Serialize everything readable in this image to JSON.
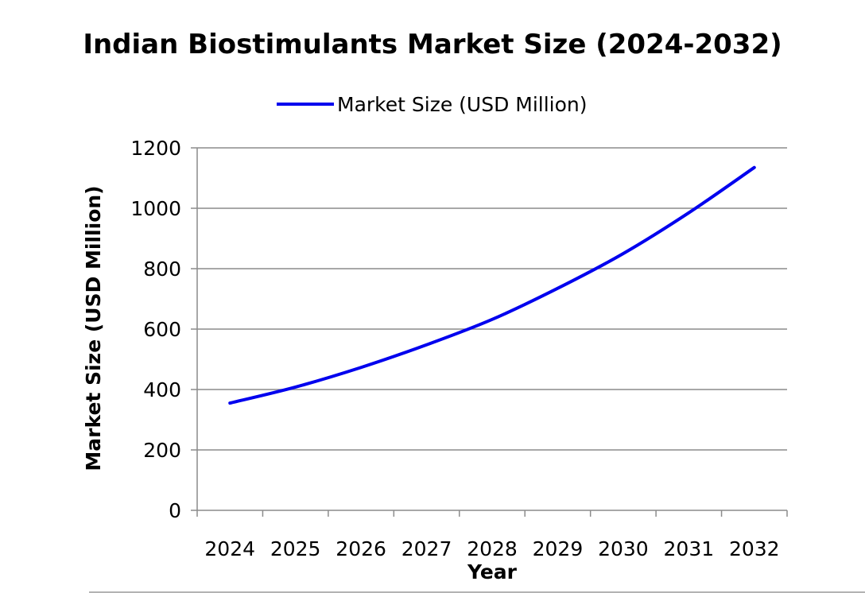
{
  "chart_data": {
    "type": "line",
    "title": "Indian Biostimulants Market Size (2024-2032)",
    "xlabel": "Year",
    "ylabel": "Market Size (USD Million)",
    "categories": [
      "2024",
      "2025",
      "2026",
      "2027",
      "2028",
      "2029",
      "2030",
      "2031",
      "2032"
    ],
    "series": [
      {
        "name": "Market Size (USD Million)",
        "values": [
          355,
          408,
          473,
          548,
          632,
          735,
          850,
          985,
          1135
        ],
        "color": "#0000ee"
      }
    ],
    "ylim": [
      0,
      1200
    ],
    "yticks": [
      "0",
      "200",
      "400",
      "600",
      "800",
      "1000",
      "1200"
    ],
    "grid": true,
    "legend_position": "top-center"
  },
  "colors": {
    "line": "#0000ee",
    "grid": "#8c8c8c",
    "text": "#000000",
    "background": "#ffffff"
  }
}
